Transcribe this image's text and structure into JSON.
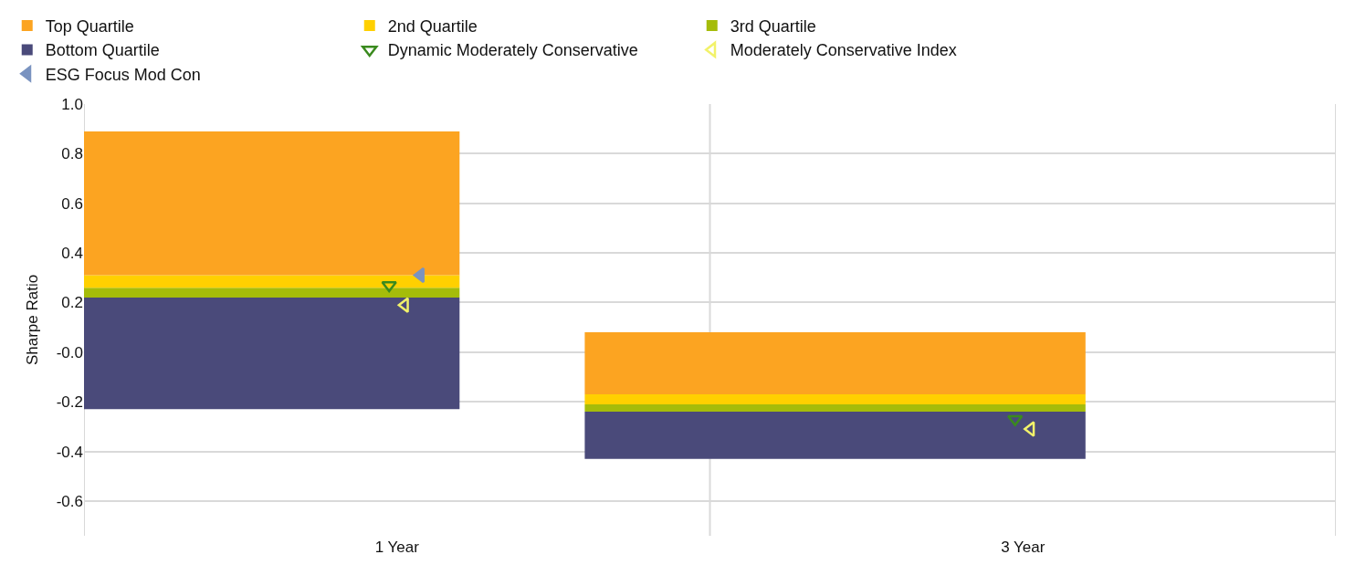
{
  "chart_data": {
    "type": "bar",
    "ylabel": "Sharpe Ratio",
    "categories": [
      "1 Year",
      "3 Year"
    ],
    "series": [
      {
        "name": "Bottom Quartile",
        "color": "#4a4a7a",
        "base": [
          -0.23,
          -0.43
        ],
        "values": [
          0.45,
          0.19
        ]
      },
      {
        "name": "3rd Quartile",
        "color": "#a5bc0a",
        "base": [
          0.22,
          -0.24
        ],
        "values": [
          0.04,
          0.03
        ]
      },
      {
        "name": "2nd Quartile",
        "color": "#ffd000",
        "base": [
          0.26,
          -0.21
        ],
        "values": [
          0.05,
          0.04
        ]
      },
      {
        "name": "Top Quartile",
        "color": "#fca421",
        "base": [
          0.31,
          -0.17
        ],
        "values": [
          0.58,
          0.25
        ]
      },
      {
        "name": "Dynamic Moderately Conservative",
        "type": "scatter",
        "marker": "triangle-down-open",
        "color": "#3a8a1e",
        "x": [
          "1 Year",
          "3 Year"
        ],
        "values": [
          0.27,
          -0.27
        ]
      },
      {
        "name": "Moderately Conservative Index",
        "type": "scatter",
        "marker": "triangle-left-open",
        "color": "#f2f26a",
        "x": [
          "1 Year",
          "3 Year"
        ],
        "values": [
          0.19,
          -0.31
        ]
      },
      {
        "name": "ESG Focus Mod Con",
        "type": "scatter",
        "marker": "triangle-left",
        "color": "#7a93c0",
        "x": [
          "1 Year",
          "3 Year"
        ],
        "values": [
          0.31,
          null
        ]
      }
    ],
    "ylim": [
      -0.74,
      1.0
    ],
    "yticks": [
      -0.6,
      -0.4,
      -0.2,
      {
        "value": 0,
        "label": "-0.0"
      },
      0.2,
      0.4,
      0.6,
      0.8,
      {
        "value": 1,
        "label": "1.0"
      }
    ],
    "grid": true,
    "legend": "top"
  }
}
